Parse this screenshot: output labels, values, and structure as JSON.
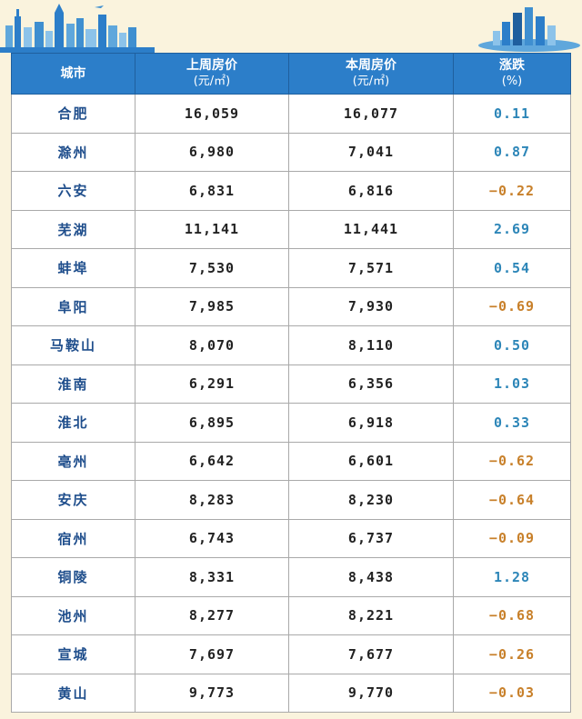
{
  "colors": {
    "header_bg": "#2c7ec9",
    "city_text": "#1f4e8c",
    "rise": "#2d86b8",
    "fall": "#c8802a",
    "page_bg": "#faf3dd"
  },
  "header": {
    "city": "城市",
    "last_week": "上周房价",
    "last_week_unit": "(元/㎡)",
    "this_week": "本周房价",
    "this_week_unit": "(元/㎡)",
    "change": "涨跌",
    "change_unit": "(%)"
  },
  "rows": [
    {
      "city": "合肥",
      "last": "16,059",
      "this": "16,077",
      "chg": "0.11",
      "dir": "up"
    },
    {
      "city": "滁州",
      "last": "6,980",
      "this": "7,041",
      "chg": "0.87",
      "dir": "up"
    },
    {
      "city": "六安",
      "last": "6,831",
      "this": "6,816",
      "chg": "−0.22",
      "dir": "down"
    },
    {
      "city": "芜湖",
      "last": "11,141",
      "this": "11,441",
      "chg": "2.69",
      "dir": "up"
    },
    {
      "city": "蚌埠",
      "last": "7,530",
      "this": "7,571",
      "chg": "0.54",
      "dir": "up"
    },
    {
      "city": "阜阳",
      "last": "7,985",
      "this": "7,930",
      "chg": "−0.69",
      "dir": "down"
    },
    {
      "city": "马鞍山",
      "last": "8,070",
      "this": "8,110",
      "chg": "0.50",
      "dir": "up"
    },
    {
      "city": "淮南",
      "last": "6,291",
      "this": "6,356",
      "chg": "1.03",
      "dir": "up"
    },
    {
      "city": "淮北",
      "last": "6,895",
      "this": "6,918",
      "chg": "0.33",
      "dir": "up"
    },
    {
      "city": "亳州",
      "last": "6,642",
      "this": "6,601",
      "chg": "−0.62",
      "dir": "down"
    },
    {
      "city": "安庆",
      "last": "8,283",
      "this": "8,230",
      "chg": "−0.64",
      "dir": "down"
    },
    {
      "city": "宿州",
      "last": "6,743",
      "this": "6,737",
      "chg": "−0.09",
      "dir": "down"
    },
    {
      "city": "铜陵",
      "last": "8,331",
      "this": "8,438",
      "chg": "1.28",
      "dir": "up"
    },
    {
      "city": "池州",
      "last": "8,277",
      "this": "8,221",
      "chg": "−0.68",
      "dir": "down"
    },
    {
      "city": "宣城",
      "last": "7,697",
      "this": "7,677",
      "chg": "−0.26",
      "dir": "down"
    },
    {
      "city": "黄山",
      "last": "9,773",
      "this": "9,770",
      "chg": "−0.03",
      "dir": "down"
    }
  ]
}
